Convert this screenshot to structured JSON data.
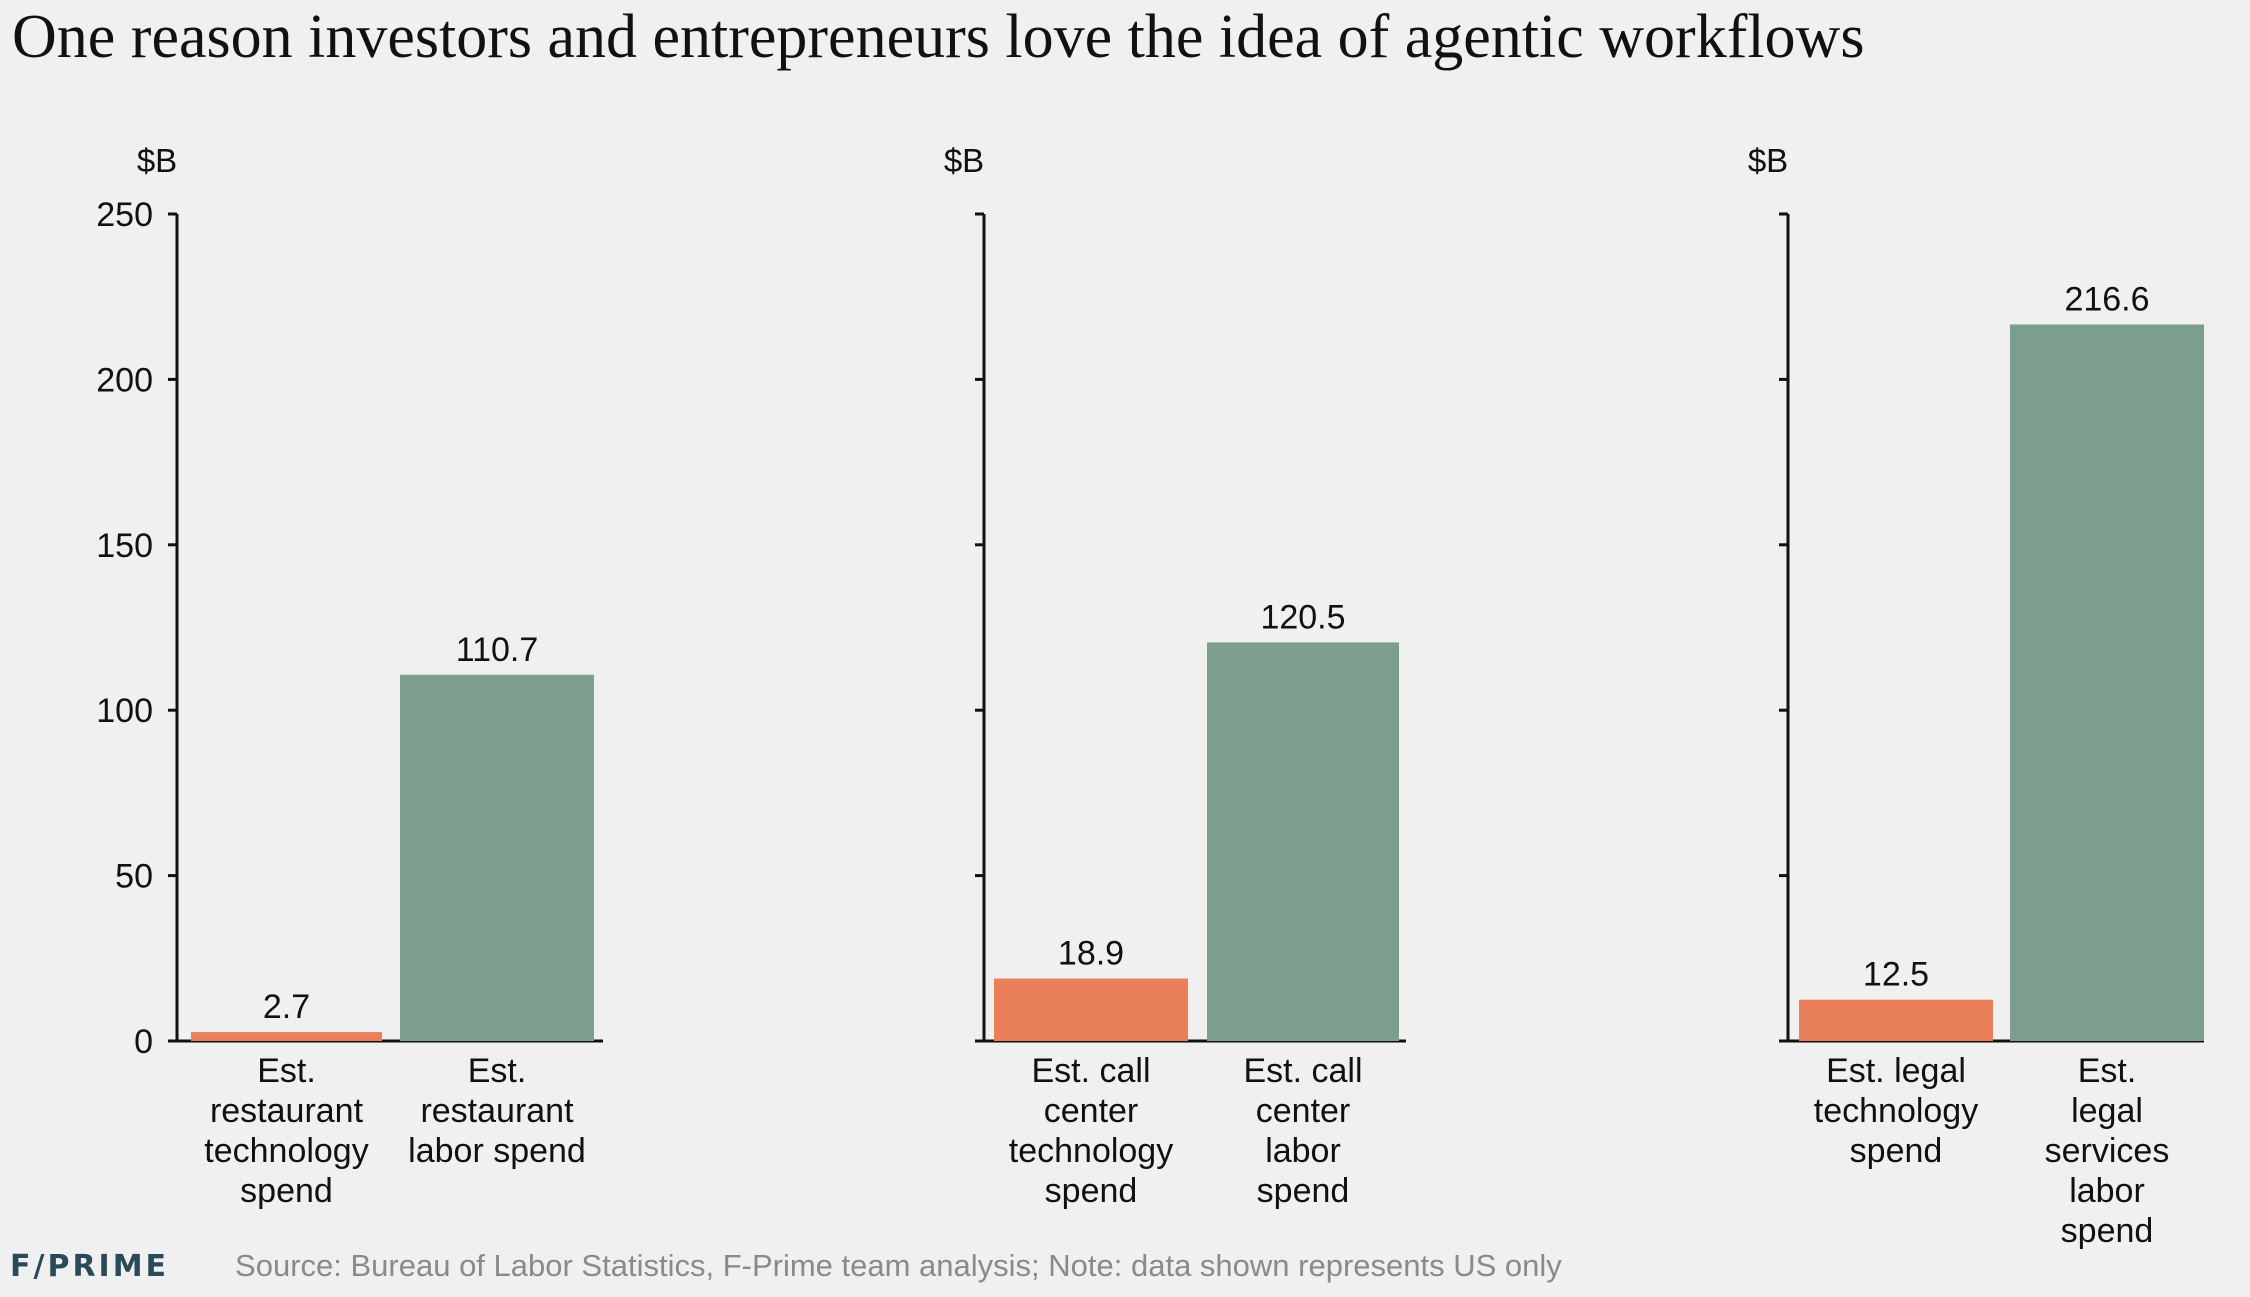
{
  "title": "One reason investors and entrepreneurs love the idea of agentic workflows",
  "footer": {
    "logo": "F/PRIME",
    "source": "Source: Bureau of Labor Statistics, F-Prime team analysis; Note: data shown represents US only"
  },
  "colors": {
    "technology": "#e9805a",
    "labor": "#7c9e8c",
    "background": "#f0f0f0"
  },
  "chart_data": [
    {
      "type": "bar",
      "ylabel": "$B",
      "ylim": [
        0,
        250
      ],
      "yticks": [
        0,
        50,
        100,
        150,
        200,
        250
      ],
      "categories": [
        [
          "Est.",
          "restaurant",
          "technology",
          "spend"
        ],
        [
          "Est.",
          "restaurant",
          "labor spend"
        ]
      ],
      "values": [
        2.7,
        110.7
      ],
      "data_labels": [
        "2.7",
        "110.7"
      ]
    },
    {
      "type": "bar",
      "ylabel": "$B",
      "ylim": [
        0,
        250
      ],
      "yticks": [
        0,
        50,
        100,
        150,
        200,
        250
      ],
      "categories": [
        [
          "Est. call",
          "center",
          "technology",
          "spend"
        ],
        [
          "Est. call",
          "center",
          "labor",
          "spend"
        ]
      ],
      "values": [
        18.9,
        120.5
      ],
      "data_labels": [
        "18.9",
        "120.5"
      ]
    },
    {
      "type": "bar",
      "ylabel": "$B",
      "ylim": [
        0,
        250
      ],
      "yticks": [
        0,
        50,
        100,
        150,
        200,
        250
      ],
      "categories": [
        [
          "Est. legal",
          "technology",
          "spend"
        ],
        [
          "Est.",
          "legal",
          "services",
          "labor",
          "spend"
        ]
      ],
      "values": [
        12.5,
        216.6
      ],
      "data_labels": [
        "12.5",
        "216.6"
      ]
    }
  ]
}
